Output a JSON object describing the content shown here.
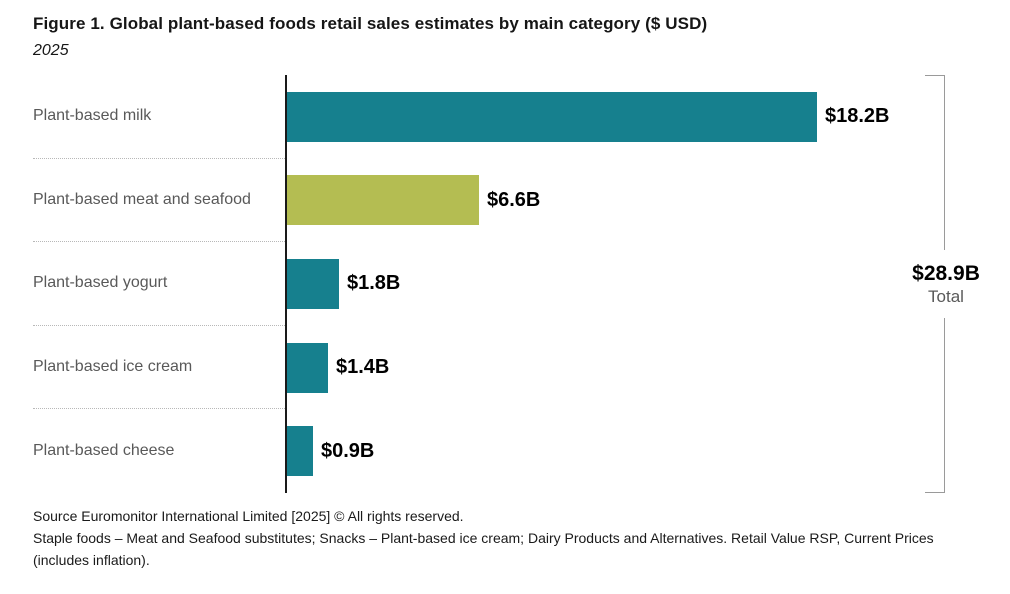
{
  "title": "Figure 1. Global plant-based foods retail sales estimates by main category ($ USD)",
  "subtitle": "2025",
  "chart_data": {
    "type": "bar",
    "orientation": "horizontal",
    "categories": [
      "Plant-based milk",
      "Plant-based meat and seafood",
      "Plant-based yogurt",
      "Plant-based ice cream",
      "Plant-based cheese"
    ],
    "values": [
      18.2,
      6.6,
      1.8,
      1.4,
      0.9
    ],
    "value_labels": [
      "$18.2B",
      "$6.6B",
      "$1.8B",
      "$1.4B",
      "$0.9B"
    ],
    "unit": "$ USD billions",
    "xlim": [
      0,
      18.2
    ],
    "bar_colors": [
      "#16808e",
      "#b4bd52",
      "#16808e",
      "#16808e",
      "#16808e"
    ],
    "grid": "dotted row separators in label column only",
    "total": {
      "value": "$28.9B",
      "label": "Total"
    }
  },
  "colors": {
    "teal": "#16808e",
    "olive": "#b4bd52",
    "axis": "#1a1a1a",
    "category_label": "#595959",
    "bracket": "#9a9a9a"
  },
  "footer": {
    "source_line": "Source Euromonitor International Limited [2025] © All rights reserved.",
    "note_line": "Staple foods – Meat and Seafood substitutes; Snacks – Plant-based ice cream; Dairy Products and Alternatives. Retail Value RSP, Current Prices (includes inflation)."
  }
}
